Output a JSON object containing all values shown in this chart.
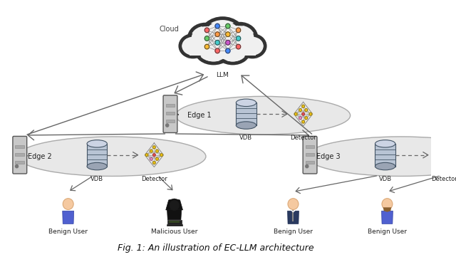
{
  "title": "Fig. 1: An illustration of EC-LLM architecture",
  "bg_color": "#ffffff",
  "cloud_label": "Cloud",
  "llm_label": "LLM",
  "edge1_label": "Edge 1",
  "edge2_label": "Edge 2",
  "edge3_label": "Edge 3",
  "vdb_label": "VDB",
  "detector_label": "Detector",
  "benign_label": "Benign User",
  "malicious_label": "Malicious User",
  "ellipse_fc": "#e8e8e8",
  "ellipse_ec": "#aaaaaa",
  "cloud_fc": "#f0f0f0",
  "cloud_ec": "#333333",
  "cloud_lw": 3.5,
  "arrow_color": "#555555",
  "dashed_color": "#666666",
  "vdb_fc": "#b0b8c8",
  "vdb_ec": "#445566",
  "server_fc": "#c8c8c8",
  "server_ec": "#555555",
  "node_colors": [
    "#ff6666",
    "#66bb66",
    "#ffcc44",
    "#cc44cc",
    "#4488ff"
  ],
  "line_color": "#555555",
  "caption_fontsize": 9,
  "label_fontsize": 7,
  "sublabel_fontsize": 6,
  "user_label_fontsize": 6.5
}
